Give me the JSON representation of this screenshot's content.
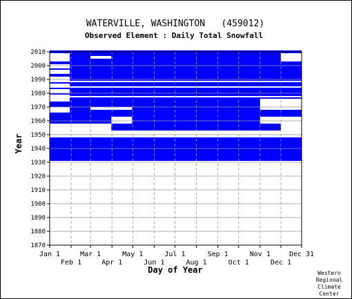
{
  "chart_data": {
    "type": "heatmap",
    "title": "WATERVILLE, WASHINGTON   (459012)",
    "subtitle": "Observed Element : Daily Total Snowfall",
    "xlabel": "Day of Year",
    "ylabel": "Year",
    "x_ticks_top": [
      "Jan 1",
      "Mar 1",
      "May 1",
      "Jul 1",
      "Sep 1",
      "Nov 1",
      "Dec 31"
    ],
    "x_ticks_top_days": [
      1,
      60,
      121,
      182,
      244,
      305,
      365
    ],
    "x_ticks_bottom": [
      "Feb 1",
      "Apr 1",
      "Jun 1",
      "Aug 1",
      "Oct 1",
      "Dec 1"
    ],
    "x_ticks_bottom_days": [
      32,
      91,
      152,
      213,
      274,
      335
    ],
    "xlim": [
      1,
      365
    ],
    "ylim": [
      1870,
      2010
    ],
    "y_ticks": [
      1870,
      1880,
      1890,
      1900,
      1910,
      1920,
      1930,
      1940,
      1950,
      1960,
      1970,
      1980,
      1990,
      2000,
      2010
    ],
    "grid": true,
    "record_start_year": 1931,
    "record_end_year": 2010,
    "data_color": "#0000ff",
    "missing_color": "#ffffff",
    "credit": [
      "Western",
      "Regional",
      "Climate",
      "Center"
    ],
    "missing_periods": [
      {
        "years": [
          1948,
          1952
        ],
        "days": [
          1,
          365
        ]
      },
      {
        "years": [
          1953,
          1957
        ],
        "days": [
          1,
          90
        ]
      },
      {
        "years": [
          1953,
          1957
        ],
        "days": [
          335,
          365
        ]
      },
      {
        "years": [
          1958,
          1962
        ],
        "days": [
          90,
          120
        ]
      },
      {
        "years": [
          1958,
          1962
        ],
        "days": [
          305,
          365
        ]
      },
      {
        "years": [
          1966,
          1969
        ],
        "days": [
          1,
          30
        ]
      },
      {
        "years": [
          1968,
          1969
        ],
        "days": [
          60,
          120
        ]
      },
      {
        "years": [
          1968,
          1975
        ],
        "days": [
          305,
          365
        ]
      },
      {
        "years": [
          1974,
          1978
        ],
        "days": [
          1,
          30
        ]
      },
      {
        "years": [
          1980,
          1982
        ],
        "days": [
          1,
          30
        ]
      },
      {
        "years": [
          1985,
          1986
        ],
        "days": [
          1,
          30
        ]
      },
      {
        "years": [
          1989,
          1991
        ],
        "days": [
          1,
          30
        ]
      },
      {
        "years": [
          1994,
          1996
        ],
        "days": [
          1,
          30
        ]
      },
      {
        "years": [
          1998,
          2000
        ],
        "days": [
          1,
          30
        ]
      },
      {
        "years": [
          2003,
          2008
        ],
        "days": [
          1,
          30
        ]
      },
      {
        "years": [
          2003,
          2008
        ],
        "days": [
          335,
          365
        ]
      },
      {
        "years": [
          2005,
          2006
        ],
        "days": [
          60,
          90
        ]
      },
      {
        "years": [
          1977,
          1977
        ],
        "days": [
          1,
          365
        ]
      },
      {
        "years": [
          1984,
          1984
        ],
        "days": [
          1,
          365
        ]
      },
      {
        "years": [
          1988,
          1988
        ],
        "days": [
          1,
          365
        ]
      }
    ]
  }
}
